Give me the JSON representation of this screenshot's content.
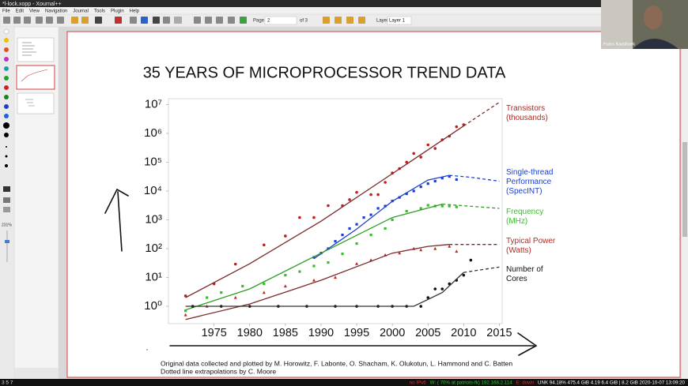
{
  "window": {
    "title": "*l-lock.xopp - Xournal++"
  },
  "menu": [
    "File",
    "Edit",
    "View",
    "Navigation",
    "Journal",
    "Tools",
    "Plugin",
    "Help"
  ],
  "toolbar": {
    "page_label": "Page",
    "page": "2",
    "page_count": "of 3",
    "layer_label": "Layer",
    "layer": "Layer 1"
  },
  "sidebar": {
    "zoom": "231%"
  },
  "webcam": {
    "name": "Frans Kaashoek"
  },
  "statusbar": {
    "workspaces": "3 5 7",
    "items": [
      {
        "text": "no IPv6",
        "color": "#e03030"
      },
      {
        "text": "W: ( 70% at patriots-fk) 192.168.2.114",
        "color": "#30c030"
      },
      {
        "text": "E: down",
        "color": "#e03030"
      },
      {
        "text": "UNK 94.18% 475.4 GiB 4.19 6.4 GiB | 8.2 GiB 2020-10-07 13:09:20",
        "color": "#ffffff"
      }
    ]
  },
  "slide": {
    "title": "35 YEARS OF MICROPROCESSOR TREND DATA",
    "caption": [
      "Original data collected and plotted by M. Horowitz, F. Labonte, O. Shacham, K. Olukotun, L. Hammond and C. Batten",
      "Dotted line extrapolations by C. Moore"
    ]
  },
  "chart_data": {
    "type": "scatter",
    "log_y": true,
    "xlim": [
      1968.6,
      2015.4
    ],
    "ylim": [
      0.25,
      16000000
    ],
    "xticks": [
      1975,
      1980,
      1985,
      1990,
      1995,
      2000,
      2005,
      2010,
      2015
    ],
    "yticks": [
      {
        "value": 1,
        "label": "10⁰"
      },
      {
        "value": 10,
        "label": "10¹"
      },
      {
        "value": 100,
        "label": "10²"
      },
      {
        "value": 1000,
        "label": "10³"
      },
      {
        "value": 10000,
        "label": "10⁴"
      },
      {
        "value": 100000,
        "label": "10⁵"
      },
      {
        "value": 1000000,
        "label": "10⁶"
      },
      {
        "value": 10000000,
        "label": "10⁷"
      }
    ],
    "series": [
      {
        "name": "Transistors\n(thousands)",
        "color": "#c41e1a",
        "line_color": "#7a2a2a",
        "marker": "circle",
        "x": [
          1971,
          1975,
          1978,
          1982,
          1985,
          1987,
          1989,
          1991,
          1993,
          1994,
          1995,
          1997,
          1998,
          1999,
          2000,
          2001,
          2002,
          2003,
          2004,
          2005,
          2006,
          2007,
          2008,
          2009,
          2010
        ],
        "values": [
          2.3,
          6,
          29,
          134,
          275,
          1200,
          1200,
          3100,
          3100,
          5000,
          9000,
          7500,
          7500,
          20000,
          42000,
          60000,
          100000,
          200000,
          150000,
          400000,
          300000,
          600000,
          800000,
          1700000,
          2000000
        ],
        "trend": {
          "x": [
            1971,
            1980,
            1990,
            2000,
            2010
          ],
          "values": [
            2,
            30,
            900,
            40000,
            1800000
          ]
        },
        "extrapolation": {
          "x": [
            2010,
            2015
          ],
          "values": [
            1800000,
            12000000
          ]
        }
      },
      {
        "name": "Single-thread\nPerformance\n(SpecINT)",
        "color": "#1c3fd0",
        "line_color": "#1c3fd0",
        "marker": "square",
        "x": [
          1989,
          1990,
          1991,
          1992,
          1993,
          1994,
          1995,
          1996,
          1997,
          1998,
          1999,
          2000,
          2001,
          2002,
          2003,
          2004,
          2005,
          2006,
          2007,
          2008,
          2009
        ],
        "values": [
          50,
          70,
          100,
          180,
          300,
          500,
          700,
          1200,
          1500,
          2500,
          3000,
          4500,
          6000,
          8000,
          10000,
          14000,
          18000,
          22000,
          28000,
          32000,
          25000
        ],
        "trend": {
          "x": [
            1989,
            1995,
            2000,
            2005,
            2008
          ],
          "values": [
            45,
            480,
            4400,
            24000,
            35000
          ]
        },
        "extrapolation": {
          "x": [
            2008,
            2011,
            2015
          ],
          "values": [
            35000,
            30000,
            22000
          ]
        }
      },
      {
        "name": "Frequency\n(MHz)",
        "color": "#3dbb2e",
        "line_color": "#2e9e24",
        "marker": "square",
        "x": [
          1971,
          1974,
          1976,
          1979,
          1982,
          1985,
          1987,
          1989,
          1991,
          1993,
          1995,
          1997,
          1999,
          2000,
          2002,
          2004,
          2005,
          2006,
          2007,
          2008,
          2009
        ],
        "values": [
          0.7,
          2,
          3,
          5,
          6,
          12,
          16,
          25,
          33,
          66,
          150,
          300,
          500,
          1000,
          2000,
          2500,
          3200,
          3000,
          3000,
          3000,
          2800
        ],
        "trend": {
          "x": [
            1971,
            1980,
            1990,
            2000,
            2007
          ],
          "values": [
            0.75,
            4,
            70,
            1200,
            3500
          ]
        },
        "extrapolation": {
          "x": [
            2007,
            2015
          ],
          "values": [
            3500,
            2500
          ]
        }
      },
      {
        "name": "Typical Power\n(Watts)",
        "color": "#c0261f",
        "line_color": "#7a2a2a",
        "marker": "triangle",
        "x": [
          1971,
          1974,
          1978,
          1982,
          1985,
          1989,
          1992,
          1995,
          1997,
          1999,
          2001,
          2003,
          2004,
          2006,
          2008,
          2009
        ],
        "values": [
          0.5,
          1,
          2,
          3,
          5,
          8,
          10,
          30,
          40,
          60,
          70,
          100,
          90,
          100,
          120,
          80
        ],
        "trend": {
          "x": [
            1971,
            1980,
            1990,
            2000,
            2005,
            2008
          ],
          "values": [
            0.35,
            1.2,
            8,
            70,
            120,
            140
          ]
        },
        "extrapolation": {
          "x": [
            2008,
            2015
          ],
          "values": [
            140,
            140
          ]
        }
      },
      {
        "name": "Number of\nCores",
        "color": "#111111",
        "line_color": "#333333",
        "marker": "circle",
        "x": [
          1972,
          1976,
          1980,
          1984,
          1988,
          1992,
          1995,
          1998,
          2000,
          2002,
          2004,
          2005,
          2006,
          2007,
          2008,
          2009,
          2010,
          2011
        ],
        "values": [
          1,
          1,
          1,
          1,
          1,
          1,
          1,
          1,
          1,
          1,
          1,
          2,
          4,
          4,
          6,
          8,
          12,
          40
        ],
        "trend": {
          "x": [
            1971,
            2003,
            2007,
            2010
          ],
          "values": [
            1,
            1,
            3,
            15
          ]
        },
        "extrapolation": {
          "x": [
            2010,
            2015
          ],
          "values": [
            15,
            23
          ]
        }
      }
    ]
  }
}
